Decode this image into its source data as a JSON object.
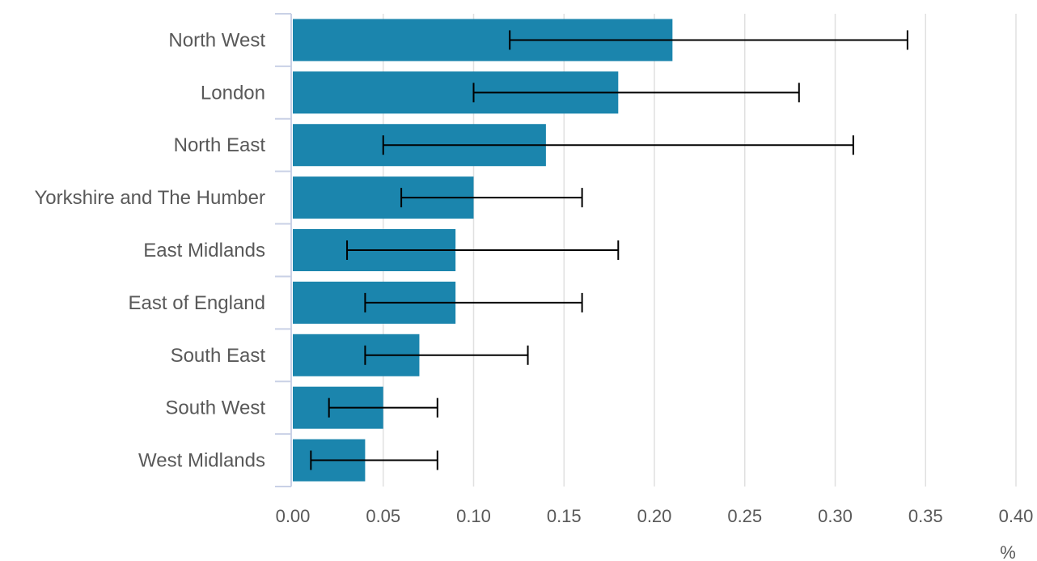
{
  "chart_data": {
    "type": "bar",
    "orientation": "horizontal",
    "categories": [
      "North West",
      "London",
      "North East",
      "Yorkshire and The Humber",
      "East Midlands",
      "East of England",
      "South East",
      "South West",
      "West Midlands"
    ],
    "series": [
      {
        "values": [
          0.21,
          0.18,
          0.14,
          0.1,
          0.09,
          0.09,
          0.07,
          0.05,
          0.04
        ],
        "ci_lower": [
          0.12,
          0.1,
          0.05,
          0.06,
          0.03,
          0.04,
          0.04,
          0.02,
          0.01
        ],
        "ci_upper": [
          0.34,
          0.28,
          0.31,
          0.16,
          0.18,
          0.16,
          0.13,
          0.08,
          0.08
        ]
      }
    ],
    "xlim": [
      0,
      0.4
    ],
    "x_ticks": [
      "0.00",
      "0.05",
      "0.10",
      "0.15",
      "0.20",
      "0.25",
      "0.30",
      "0.35",
      "0.40"
    ],
    "x_unit_label": "%",
    "title": "",
    "xlabel": "%",
    "ylabel": "",
    "grid": "vertical",
    "colors": {
      "bar": "#1b85ad",
      "error_bar": "#000000",
      "grid": "#e0e0e0",
      "axis": "#c9d1e6",
      "text": "#595959"
    }
  }
}
